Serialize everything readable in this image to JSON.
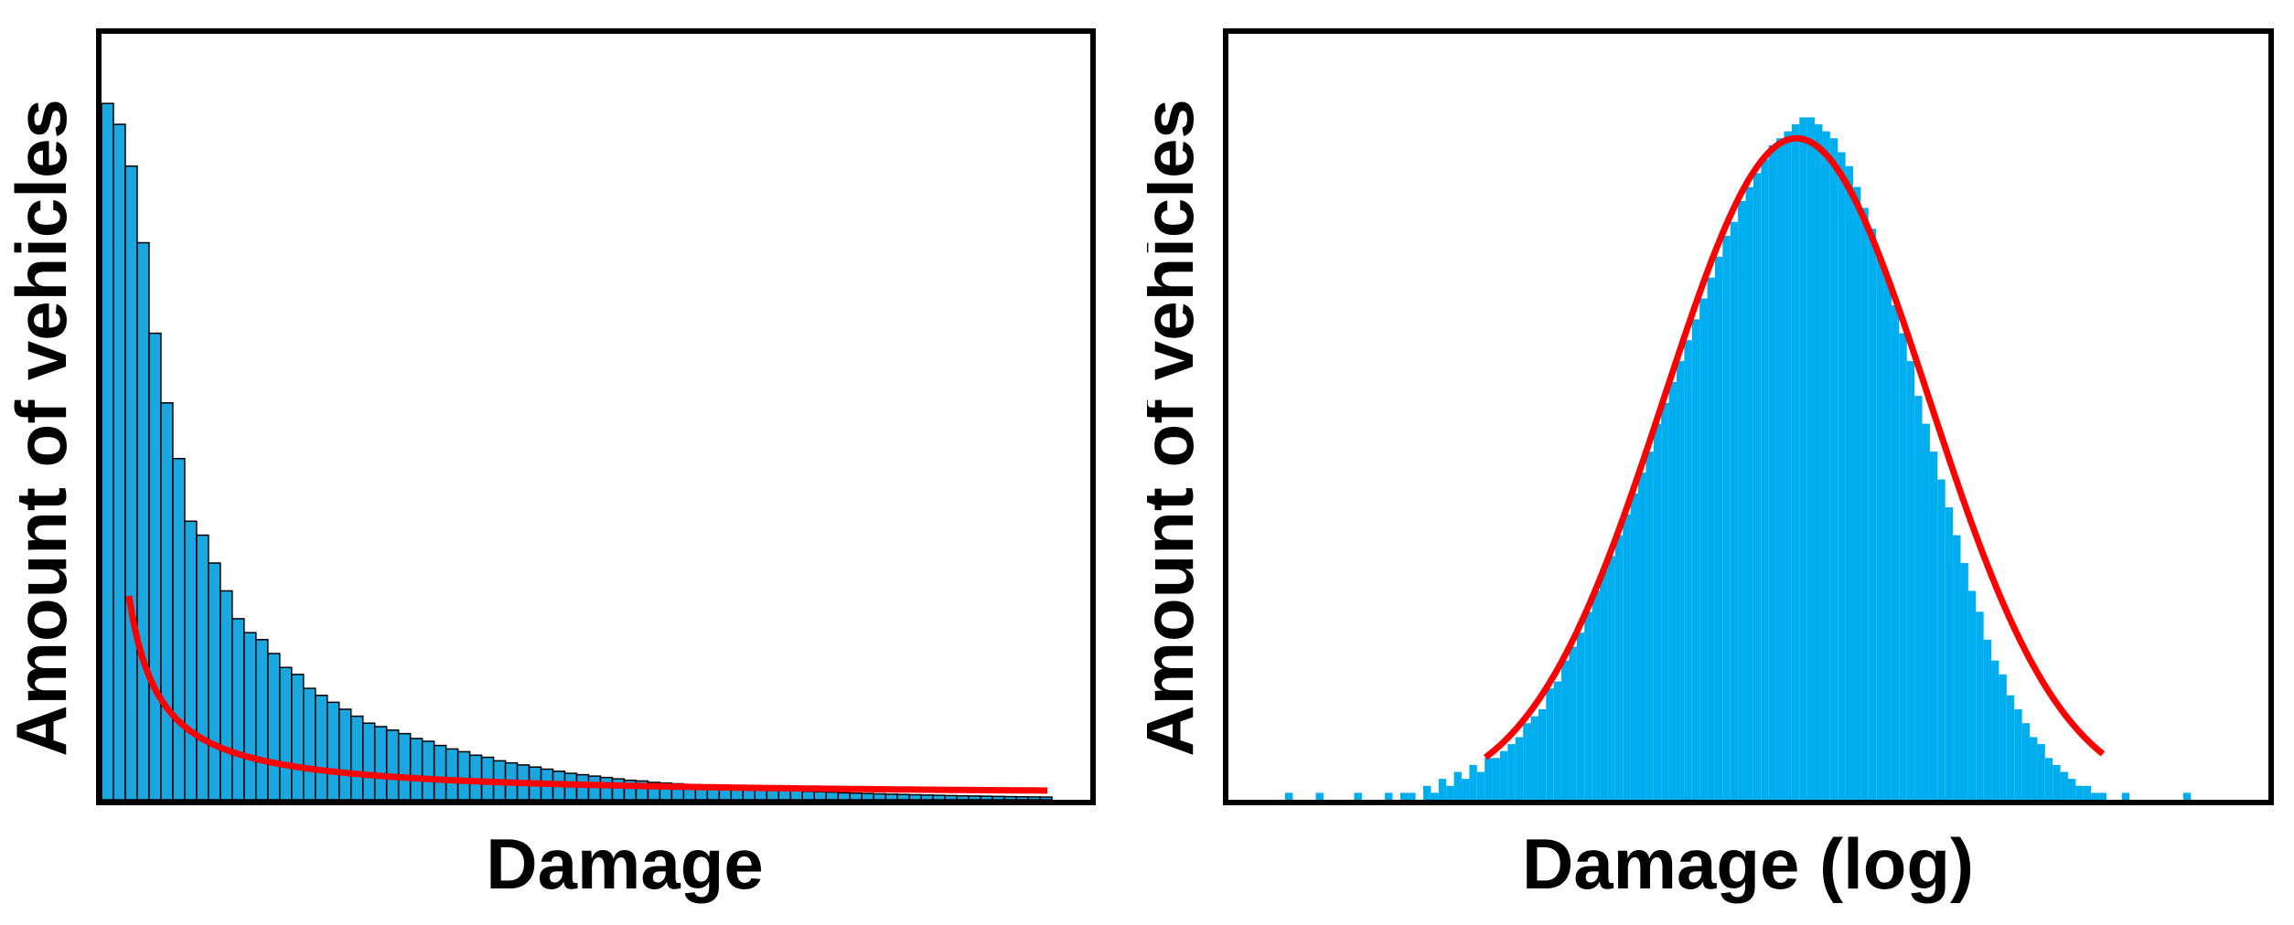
{
  "chart_data": [
    {
      "type": "bar",
      "title": "",
      "xlabel": "Damage",
      "ylabel": "Amount of vehicles",
      "grid": false,
      "bar_color": "#1aa7e0",
      "bar_edge_color": "#000000",
      "fit_color": "#ff0000",
      "fit": "inverse-decay",
      "values": [
        100,
        97,
        91,
        80,
        67,
        57,
        49,
        40,
        38,
        34,
        30,
        26,
        24,
        23,
        21,
        19,
        18,
        16,
        15,
        14,
        13,
        12,
        11,
        10.5,
        10,
        9.5,
        8.8,
        8.4,
        7.8,
        7.3,
        6.9,
        6.4,
        6.1,
        5.6,
        5.3,
        5.0,
        4.7,
        4.4,
        4.1,
        3.8,
        3.6,
        3.4,
        3.2,
        3.0,
        2.8,
        2.7,
        2.5,
        2.4,
        2.3,
        2.1,
        2.0,
        1.9,
        1.8,
        1.7,
        1.6,
        1.5,
        1.4,
        1.35,
        1.3,
        1.2,
        1.15,
        1.1,
        1.0,
        0.95,
        0.9,
        0.85,
        0.8,
        0.76,
        0.72,
        0.68,
        0.64,
        0.6,
        0.57,
        0.54,
        0.51,
        0.48,
        0.45,
        0.43,
        0.41,
        0.39
      ],
      "ylim": [
        0,
        110
      ]
    },
    {
      "type": "bar",
      "title": "",
      "xlabel": "Damage (log)",
      "ylabel": "Amount of vehicles",
      "grid": false,
      "bar_color": "#00aeef",
      "fit_color": "#ff0000",
      "fit": "normal",
      "values": [
        0,
        0,
        0,
        0,
        0,
        1,
        0,
        0,
        0,
        1,
        0,
        0,
        0,
        0,
        1,
        0,
        0,
        0,
        1,
        0,
        1,
        1,
        0,
        2,
        1,
        3,
        2,
        4,
        3,
        5,
        4,
        6,
        6,
        7,
        8,
        9,
        11,
        12,
        13,
        16,
        17,
        20,
        22,
        24,
        27,
        30,
        33,
        35,
        38,
        41,
        44,
        47,
        50,
        54,
        57,
        60,
        63,
        66,
        69,
        72,
        75,
        78,
        81,
        83,
        86,
        88,
        90,
        92,
        94,
        95,
        96,
        97,
        98,
        98,
        97,
        96,
        95,
        93,
        91,
        88,
        85,
        82,
        78,
        75,
        71,
        67,
        63,
        58,
        54,
        50,
        46,
        42,
        38,
        34,
        30,
        27,
        23,
        20,
        18,
        15,
        13,
        11,
        9,
        8,
        6,
        5,
        4,
        3,
        2,
        2,
        1,
        1,
        0,
        0,
        1,
        0,
        0,
        0,
        0,
        0,
        0,
        0,
        1,
        0,
        0,
        0,
        0,
        0,
        0,
        0
      ],
      "ylim": [
        0,
        110
      ]
    }
  ]
}
